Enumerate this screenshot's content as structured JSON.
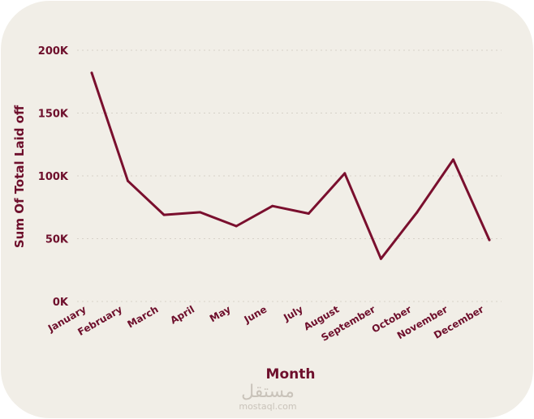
{
  "colors": {
    "background": "#f1eee7",
    "line": "#7a0f2e",
    "text": "#6e0f2c",
    "grid": "#d6d1c8",
    "watermark": "#c9c3ba"
  },
  "watermark": {
    "arabic": "مستقل",
    "latin": "mostaql.com"
  },
  "chart_data": {
    "type": "line",
    "categories": [
      "January",
      "February",
      "March",
      "April",
      "May",
      "June",
      "July",
      "August",
      "September",
      "October",
      "November",
      "December"
    ],
    "series": [
      {
        "values": [
          182000,
          96000,
          69000,
          71000,
          60000,
          76000,
          70000,
          102000,
          34000,
          71000,
          113000,
          49000
        ]
      }
    ],
    "xlabel": "Month",
    "ylabel": "Sum Of Total Laid off",
    "ylim": [
      0,
      200000
    ],
    "yticks": [
      0,
      50000,
      100000,
      150000,
      200000
    ],
    "ytick_labels": [
      "0K",
      "50K",
      "100K",
      "150K",
      "200K"
    ],
    "grid": true,
    "legend": "none"
  }
}
